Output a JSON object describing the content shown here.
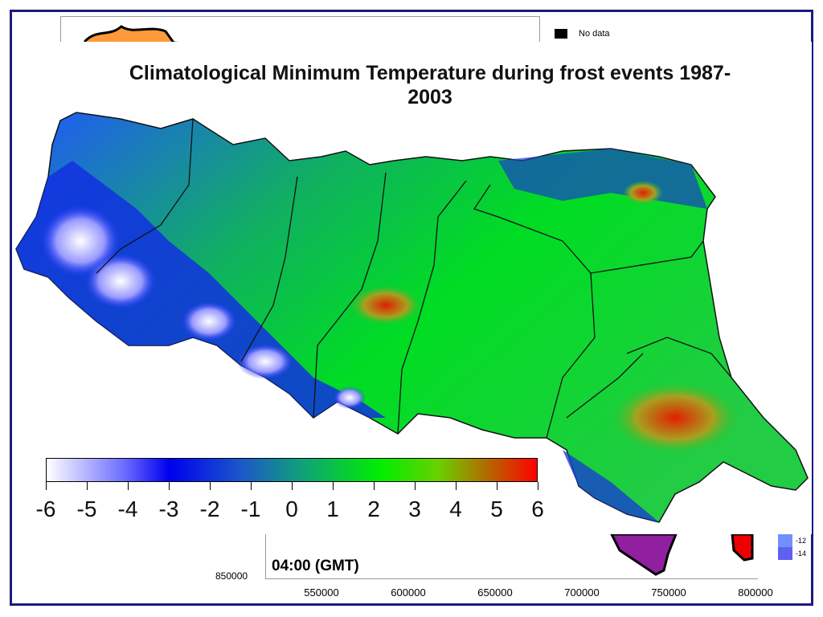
{
  "title": "Climatological Minimum Temperature during frost events 1987-2003",
  "time_label": "04:00 (GMT)",
  "background_legend": {
    "no_data_label": "No data",
    "entries": [
      {
        "label": "-12",
        "color": "#7090ff"
      },
      {
        "label": "-14",
        "color": "#6060f0"
      }
    ]
  },
  "background_axes": {
    "y_tick": "850000",
    "x_ticks": [
      "550000",
      "600000",
      "650000",
      "700000",
      "750000",
      "800000"
    ]
  },
  "colorbar": {
    "ticks": [
      "-6",
      "-5",
      "-4",
      "-3",
      "-2",
      "-1",
      "0",
      "1",
      "2",
      "3",
      "4",
      "5",
      "6"
    ],
    "colors": [
      "#ffffff",
      "#6a6aff",
      "#0000ee",
      "#1c59c8",
      "#10a07a",
      "#00ee00",
      "#6ad000",
      "#ff0000"
    ]
  },
  "colors": {
    "frame": "#1a1a80",
    "cold": "#0000ee",
    "warm": "#ff0000",
    "mid": "#00ee00"
  }
}
